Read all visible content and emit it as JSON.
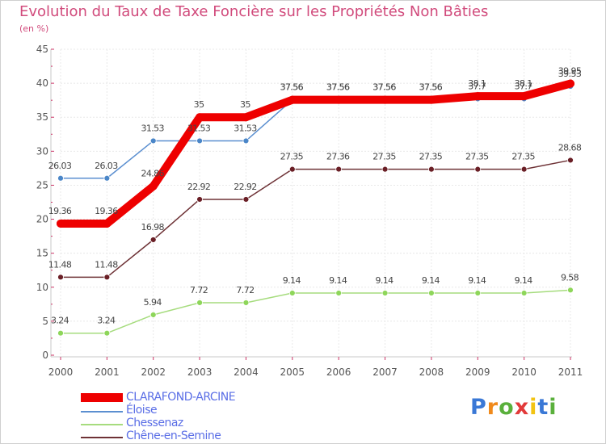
{
  "header": {
    "title": "Evolution du Taux de Taxe Foncière sur les Propriétés Non Bâties",
    "unit": "(en %)"
  },
  "chart_data": {
    "type": "line",
    "title": "Evolution du Taux de Taxe Foncière sur les Propriétés Non Bâties",
    "ylabel": "(en %)",
    "xlabel": "",
    "ylim": [
      0,
      45
    ],
    "yticks": [
      "0",
      "5",
      "10",
      "15",
      "20",
      "25",
      "30",
      "35",
      "40",
      "45"
    ],
    "categories": [
      "2000",
      "2001",
      "2002",
      "2003",
      "2004",
      "2005",
      "2006",
      "2007",
      "2008",
      "2009",
      "2010",
      "2011"
    ],
    "series": [
      {
        "name": "Éloise",
        "color": "#5b8fd0",
        "marker": "#4a86c8",
        "values": [
          26.03,
          26.03,
          31.53,
          31.53,
          31.53,
          37.56,
          37.56,
          37.56,
          37.56,
          37.7,
          37.7,
          39.53
        ],
        "labels": [
          "26.03",
          "26.03",
          "31.53",
          "31.53",
          "31.53",
          "37.56",
          "37.56",
          "37.56",
          "37.56",
          "37.7",
          "37.7",
          "39.53"
        ]
      },
      {
        "name": "Chessenaz",
        "color": "#a6dc7e",
        "marker": "#8ed65a",
        "values": [
          3.24,
          3.24,
          5.94,
          7.72,
          7.72,
          9.14,
          9.14,
          9.14,
          9.14,
          9.14,
          9.14,
          9.58
        ],
        "labels": [
          "3.24",
          "3.24",
          "5.94",
          "7.72",
          "7.72",
          "9.14",
          "9.14",
          "9.14",
          "9.14",
          "9.14",
          "9.14",
          "9.58"
        ]
      },
      {
        "name": "Chêne-en-Semine",
        "color": "#6e3236",
        "marker": "#6a1f26",
        "values": [
          11.48,
          11.48,
          16.98,
          22.92,
          22.92,
          27.35,
          27.36,
          27.35,
          27.35,
          27.35,
          27.35,
          28.68
        ],
        "labels": [
          "11.48",
          "11.48",
          "16.98",
          "22.92",
          "22.92",
          "27.35",
          "27.36",
          "27.35",
          "27.35",
          "27.35",
          "27.35",
          "28.68"
        ]
      },
      {
        "name": "CLARAFOND-ARCINE",
        "color": "#ee0000",
        "marker": "#ee0000",
        "values": [
          19.36,
          19.36,
          24.86,
          35,
          35,
          37.56,
          37.56,
          37.56,
          37.56,
          38.1,
          38.1,
          39.95
        ],
        "labels": [
          "19.36",
          "19.36",
          "24.86",
          "35",
          "35",
          "37.56",
          "37.56",
          "37.56",
          "37.56",
          "38.1",
          "38.1",
          "39.95"
        ]
      }
    ],
    "legend": [
      "CLARAFOND-ARCINE",
      "Éloise",
      "Chessenaz",
      "Chêne-en-Semine"
    ]
  },
  "logo": {
    "letters": [
      "P",
      "r",
      "o",
      "x",
      "i",
      "t",
      "i"
    ],
    "colors": [
      "#3a78d6",
      "#f08a1c",
      "#5ab03c",
      "#e23a3a",
      "#f2c313",
      "#3a78d6",
      "#5ab03c"
    ]
  }
}
